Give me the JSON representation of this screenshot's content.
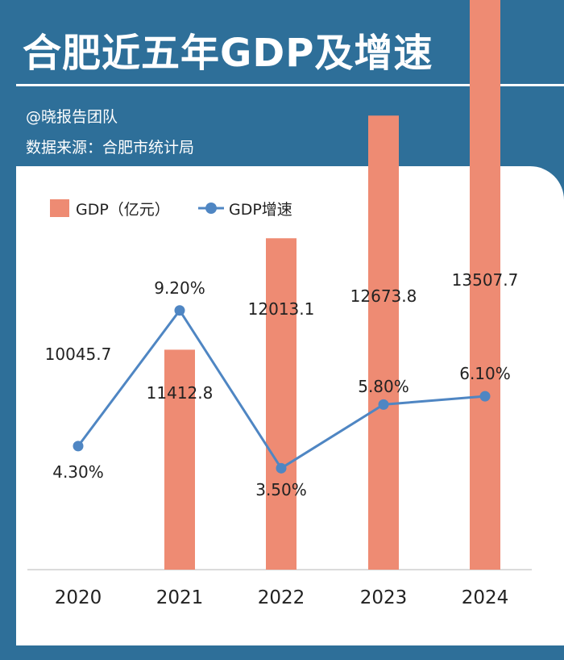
{
  "header": {
    "title": "合肥近五年GDP及增速",
    "author": "@晓报告团队",
    "source": "数据来源：合肥市统计局"
  },
  "colors": {
    "background": "#2e6f99",
    "bar": "#ee8b73",
    "line": "#4f86c3",
    "text": "#222222"
  },
  "chart_data": {
    "type": "bar",
    "categories": [
      "2020",
      "2021",
      "2022",
      "2023",
      "2024"
    ],
    "series": [
      {
        "name": "GDP（亿元）",
        "kind": "bar",
        "axis": "left",
        "values": [
          10045.7,
          11412.8,
          12013.1,
          12673.8,
          13507.7
        ],
        "labels": [
          "10045.7",
          "11412.8",
          "12013.1",
          "12673.8",
          "13507.7"
        ]
      },
      {
        "name": "GDP增速",
        "kind": "line",
        "axis": "right",
        "values": [
          4.3,
          9.2,
          3.5,
          5.8,
          6.1
        ],
        "labels": [
          "4.30%",
          "9.20%",
          "3.50%",
          "5.80%",
          "6.10%"
        ]
      }
    ],
    "legend_position": "top-left",
    "grid": false
  }
}
